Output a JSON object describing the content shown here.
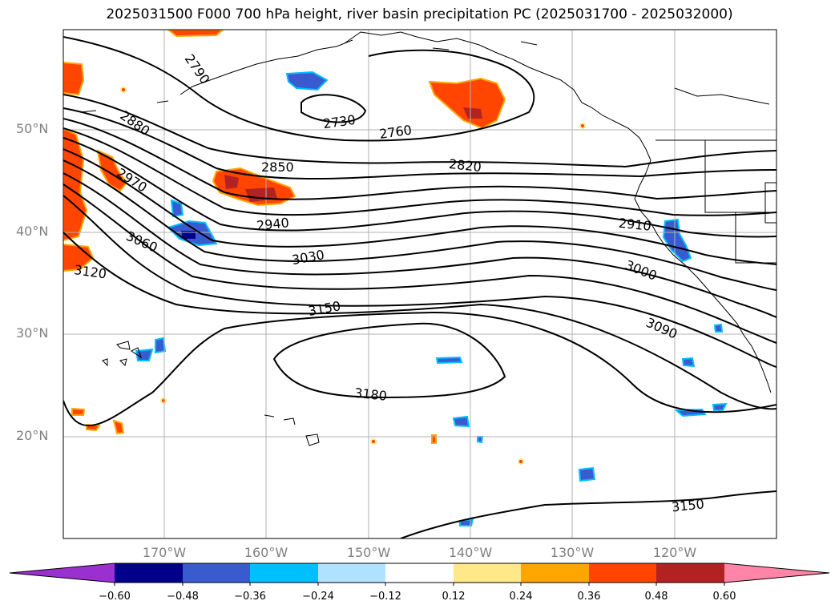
{
  "title": "2025031500 F000 700 hPa height, river basin precipitation PC (2025031700 - 2025032000)",
  "lat_labels": [
    "50°N",
    "40°N",
    "30°N",
    "20°N"
  ],
  "lon_labels": [
    "170°W",
    "160°W",
    "150°W",
    "140°W",
    "130°W",
    "120°W"
  ],
  "contour_labels": [
    "2790",
    "2730",
    "2760",
    "2880",
    "2850",
    "2820",
    "2970",
    "2940",
    "2910",
    "3060",
    "3030",
    "3000",
    "3120",
    "3150",
    "3090",
    "3180",
    "3150"
  ],
  "colorbar": {
    "tick_labels": [
      "−0.60",
      "−0.48",
      "−0.36",
      "−0.24",
      "−0.12",
      "0.12",
      "0.24",
      "0.36",
      "0.48",
      "0.60"
    ],
    "colors": [
      "#9b30d0",
      "#00008b",
      "#3a5bd0",
      "#00bfff",
      "#b0e2ff",
      "#ffffff",
      "#ffe88a",
      "#ffa500",
      "#ff4500",
      "#b22222",
      "#ff85a8"
    ]
  },
  "colors": {
    "contour": "#000000",
    "gridline": "#b0b0b0",
    "coastline": "#000000"
  }
}
